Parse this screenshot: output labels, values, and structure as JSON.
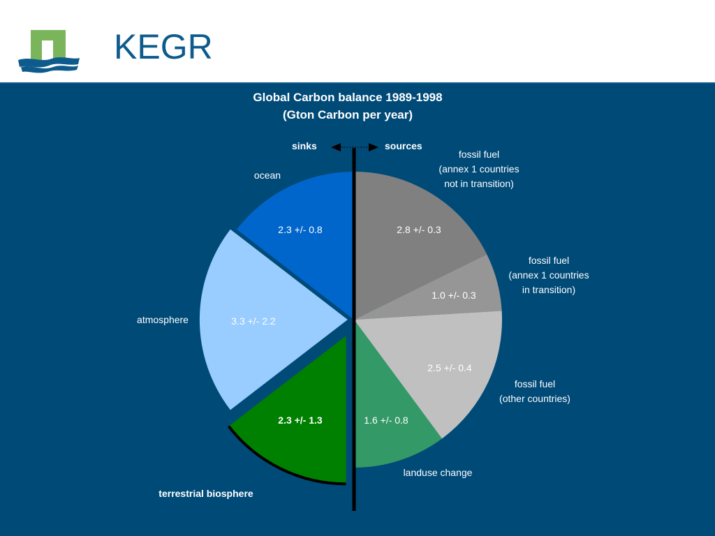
{
  "slide": {
    "title": "KEGR"
  },
  "colors": {
    "panel": "#004a78",
    "ocean": "#0066cc",
    "atmosphere": "#99ccff",
    "terrestrial_biosphere": "#008000",
    "landuse_change": "#339966",
    "fossil_fuel_other": "#c0c0c0",
    "fossil_fuel_in_transition": "#969696",
    "fossil_fuel_not_in_transition": "#808080",
    "logo_green": "#7ab55c",
    "logo_blue": "#0d5b8c"
  },
  "chart_data": {
    "type": "pie",
    "title": "Global Carbon balance 1989-1998",
    "subtitle": "(Gton Carbon per year)",
    "sinks_label": "sinks",
    "sources_label": "sources",
    "sources": [
      {
        "name_lines": [
          "fossil fuel",
          "(annex 1 countries",
          "not in transition)"
        ],
        "value": 2.8,
        "uncertainty": 0.3,
        "value_label": "2.8 +/- 0.3"
      },
      {
        "name_lines": [
          "fossil fuel",
          "(annex 1 countries",
          "in transition)"
        ],
        "value": 1.0,
        "uncertainty": 0.3,
        "value_label": "1.0 +/- 0.3"
      },
      {
        "name_lines": [
          "fossil fuel",
          "(other countries)"
        ],
        "value": 2.5,
        "uncertainty": 0.4,
        "value_label": "2.5 +/- 0.4"
      },
      {
        "name_lines": [
          "landuse change"
        ],
        "value": 1.6,
        "uncertainty": 0.8,
        "value_label": "1.6 +/- 0.8"
      }
    ],
    "sinks": [
      {
        "name_lines": [
          "terrestrial biosphere"
        ],
        "value": 2.3,
        "uncertainty": 1.3,
        "value_label": "2.3 +/- 1.3",
        "exploded": true
      },
      {
        "name_lines": [
          "atmosphere"
        ],
        "value": 3.3,
        "uncertainty": 2.2,
        "value_label": "3.3 +/- 2.2",
        "exploded": true
      },
      {
        "name_lines": [
          "ocean"
        ],
        "value": 2.3,
        "uncertainty": 0.8,
        "value_label": "2.3 +/- 0.8"
      }
    ]
  }
}
